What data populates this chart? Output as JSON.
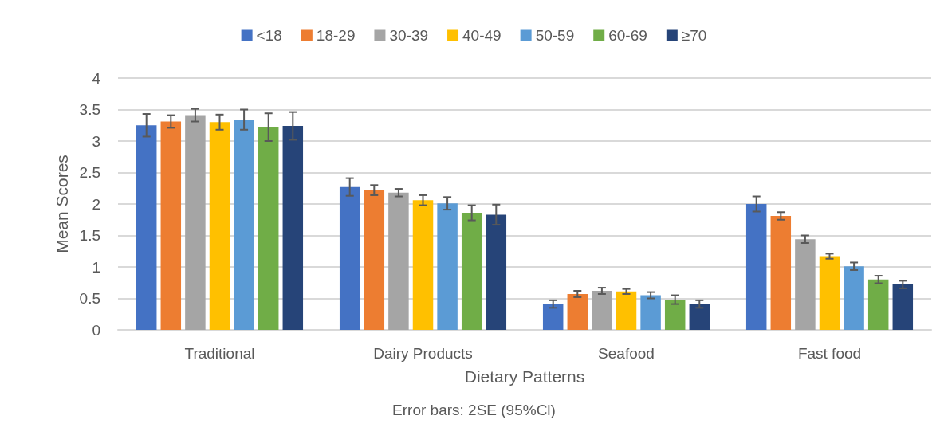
{
  "chart_data": {
    "type": "bar",
    "xlabel": "Dietary Patterns",
    "ylabel": "Mean Scores",
    "annotations": [
      "Error bars: 2SE (95%Cl)"
    ],
    "categories": [
      "Traditional",
      "Dairy Products",
      "Seafood",
      "Fast food"
    ],
    "ylim": [
      0,
      4
    ],
    "yticks": [
      0,
      0.5,
      1,
      1.5,
      2,
      2.5,
      3,
      3.5,
      4
    ],
    "grid": "y",
    "legend": "top",
    "series": [
      {
        "name": "<18",
        "color": "#4472c4",
        "values": [
          3.25,
          2.27,
          0.41,
          2.0
        ],
        "errors": [
          0.18,
          0.14,
          0.06,
          0.12
        ]
      },
      {
        "name": "18-29",
        "color": "#ed7d31",
        "values": [
          3.31,
          2.22,
          0.57,
          1.81
        ],
        "errors": [
          0.1,
          0.08,
          0.05,
          0.06
        ]
      },
      {
        "name": "30-39",
        "color": "#a5a5a5",
        "values": [
          3.41,
          2.18,
          0.62,
          1.44
        ],
        "errors": [
          0.1,
          0.06,
          0.05,
          0.06
        ]
      },
      {
        "name": "40-49",
        "color": "#ffc000",
        "values": [
          3.3,
          2.06,
          0.61,
          1.17
        ],
        "errors": [
          0.12,
          0.08,
          0.04,
          0.04
        ]
      },
      {
        "name": "50-59",
        "color": "#5b9bd5",
        "values": [
          3.34,
          2.01,
          0.55,
          1.01
        ],
        "errors": [
          0.16,
          0.1,
          0.05,
          0.06
        ]
      },
      {
        "name": "60-69",
        "color": "#70ad47",
        "values": [
          3.22,
          1.86,
          0.48,
          0.8
        ],
        "errors": [
          0.22,
          0.12,
          0.07,
          0.06
        ]
      },
      {
        "name": "≥70",
        "color": "#264478",
        "values": [
          3.24,
          1.83,
          0.41,
          0.72
        ],
        "errors": [
          0.22,
          0.16,
          0.06,
          0.06
        ]
      }
    ]
  }
}
